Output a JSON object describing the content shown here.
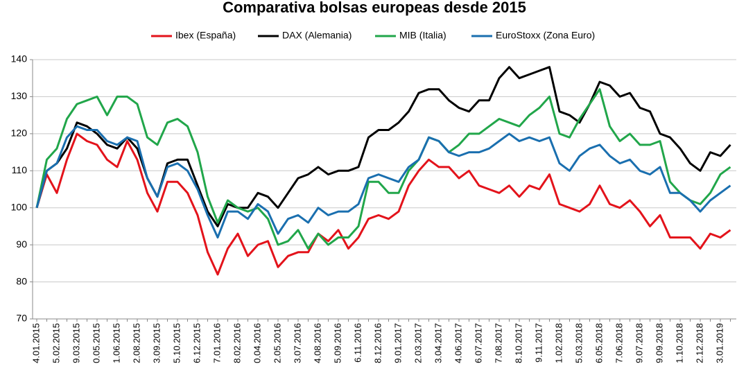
{
  "chart_data": {
    "type": "line",
    "title": "Comparativa bolsas europeas desde 2015",
    "categories": [
      "4.01.2015",
      null,
      "5.02.2015",
      null,
      "9.03.2015",
      null,
      "0.05.2015",
      null,
      "1.06.2015",
      null,
      "2.08.2015",
      null,
      "3.09.2015",
      null,
      "5.10.2015",
      null,
      "6.12.2015",
      null,
      "7.01.2016",
      null,
      "8.02.2016",
      null,
      "0.04.2016",
      null,
      "2.05.2016",
      null,
      "3.07.2016",
      null,
      "4.08.2016",
      null,
      "5.09.2016",
      null,
      "6.11.2016",
      null,
      "8.12.2016",
      null,
      "9.01.2017",
      null,
      "2.03.2017",
      null,
      "3.04.2017",
      null,
      "4.06.2017",
      null,
      "6.07.2017",
      null,
      "7.08.2017",
      null,
      "8.10.2017",
      null,
      "9.11.2017",
      null,
      "1.02.2018",
      null,
      "5.03.2018",
      null,
      "6.05.2018",
      null,
      "7.06.2018",
      null,
      "9.07.2018",
      null,
      "9.09.2018",
      null,
      "1.10.2018",
      null,
      "2.12.2018",
      null,
      "3.01.2019",
      null
    ],
    "series": [
      {
        "name": "Ibex (España)",
        "color": "#e3131b",
        "values": [
          100,
          109,
          104,
          113,
          120,
          118,
          117,
          113,
          111,
          118,
          113,
          104,
          99,
          107,
          107,
          104,
          98,
          88,
          82,
          89,
          93,
          87,
          90,
          91,
          84,
          87,
          88,
          88,
          93,
          91,
          94,
          89,
          92,
          97,
          98,
          97,
          99,
          106,
          110,
          113,
          111,
          111,
          108,
          110,
          106,
          105,
          104,
          106,
          103,
          106,
          105,
          109,
          101,
          100,
          99,
          101,
          106,
          101,
          100,
          102,
          99,
          95,
          98,
          92,
          92,
          92,
          89,
          93,
          92,
          94
        ]
      },
      {
        "name": "DAX (Alemania)",
        "color": "#000000",
        "values": [
          100,
          110,
          112,
          116,
          123,
          122,
          120,
          117,
          116,
          119,
          116,
          108,
          103,
          112,
          113,
          113,
          106,
          99,
          95,
          101,
          100,
          100,
          104,
          103,
          100,
          104,
          108,
          109,
          111,
          109,
          110,
          110,
          111,
          119,
          121,
          121,
          123,
          126,
          131,
          132,
          132,
          129,
          127,
          126,
          129,
          129,
          135,
          138,
          135,
          136,
          137,
          138,
          126,
          125,
          123,
          128,
          134,
          133,
          130,
          131,
          127,
          126,
          120,
          119,
          116,
          112,
          110,
          115,
          114,
          117
        ]
      },
      {
        "name": "MIB (Italia)",
        "color": "#21a64a",
        "values": [
          100,
          113,
          116,
          124,
          128,
          129,
          130,
          125,
          130,
          130,
          128,
          119,
          117,
          123,
          124,
          122,
          115,
          103,
          96,
          102,
          100,
          99,
          100,
          97,
          90,
          91,
          94,
          89,
          93,
          90,
          92,
          92,
          95,
          107,
          107,
          104,
          104,
          110,
          113,
          119,
          118,
          115,
          117,
          120,
          120,
          122,
          124,
          123,
          122,
          125,
          127,
          130,
          120,
          119,
          124,
          128,
          132,
          122,
          118,
          120,
          117,
          117,
          118,
          107,
          104,
          102,
          101,
          104,
          109,
          111
        ]
      },
      {
        "name": "EuroStoxx (Zona Euro)",
        "color": "#1a6faf",
        "values": [
          100,
          110,
          112,
          119,
          122,
          121,
          121,
          118,
          117,
          119,
          118,
          108,
          103,
          111,
          112,
          110,
          105,
          98,
          92,
          99,
          99,
          97,
          101,
          99,
          93,
          97,
          98,
          96,
          100,
          98,
          99,
          99,
          101,
          108,
          109,
          108,
          107,
          111,
          113,
          119,
          118,
          115,
          114,
          115,
          115,
          116,
          118,
          120,
          118,
          119,
          118,
          119,
          112,
          110,
          114,
          116,
          117,
          114,
          112,
          113,
          110,
          109,
          111,
          104,
          104,
          102,
          99,
          102,
          104,
          106
        ]
      }
    ],
    "ylim": [
      70,
      140
    ],
    "yticks": [
      70,
      80,
      90,
      100,
      110,
      120,
      130,
      140
    ],
    "grid": true
  }
}
